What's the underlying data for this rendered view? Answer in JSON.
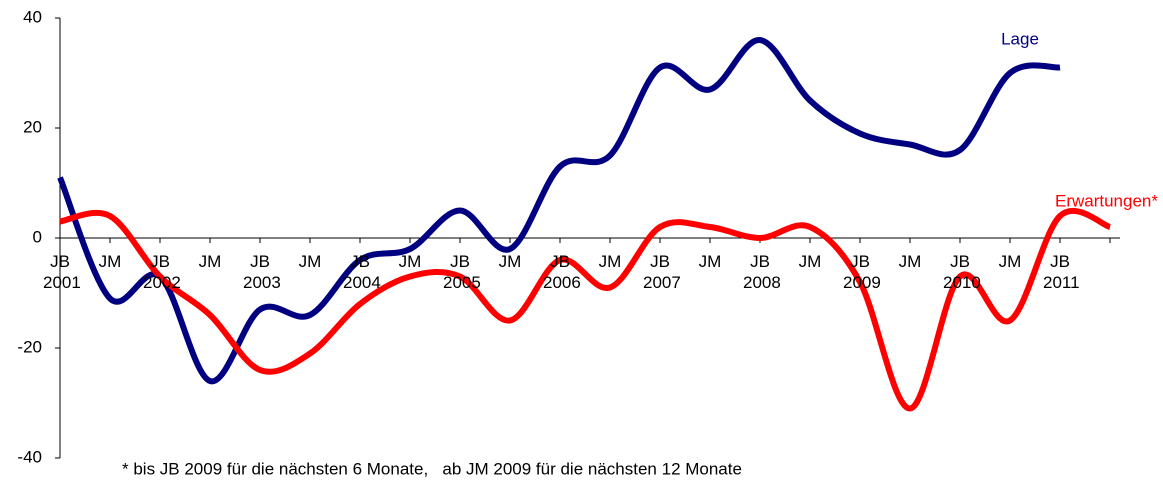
{
  "chart_data": {
    "type": "line",
    "categories": [
      "JB 2001",
      "JM",
      "JB 2002",
      "JM",
      "JB 2003",
      "JM",
      "JB 2004",
      "JM",
      "JB 2005",
      "JM",
      "JB 2006",
      "JM",
      "JB 2007",
      "JM",
      "JB 2008",
      "JM",
      "JB 2009",
      "JM",
      "JB 2010",
      "JM",
      "JB 2011",
      null
    ],
    "series": [
      {
        "name": "Lage",
        "color": "#000080",
        "values": [
          11,
          -11,
          -7,
          -26,
          -13,
          -14,
          -4,
          -2,
          5,
          -2,
          13,
          15,
          31,
          27,
          36,
          25,
          19,
          17,
          16,
          30,
          31,
          null
        ]
      },
      {
        "name": "Erwartungen*",
        "color": "#ff0000",
        "values": [
          3,
          4,
          -7,
          -14,
          -24,
          -21,
          -12,
          -7,
          -7,
          -15,
          -4,
          -9,
          2,
          2,
          0,
          2,
          -8,
          -31,
          -7,
          -15,
          4,
          2
        ]
      }
    ],
    "ylim": [
      -40,
      40
    ],
    "yticks": [
      -40,
      -20,
      0,
      20,
      40
    ],
    "annotations": [
      "* bis JB 2009 für die nächsten 6 Monate,   ab JM 2009 für die nächsten 12 Monate"
    ]
  }
}
